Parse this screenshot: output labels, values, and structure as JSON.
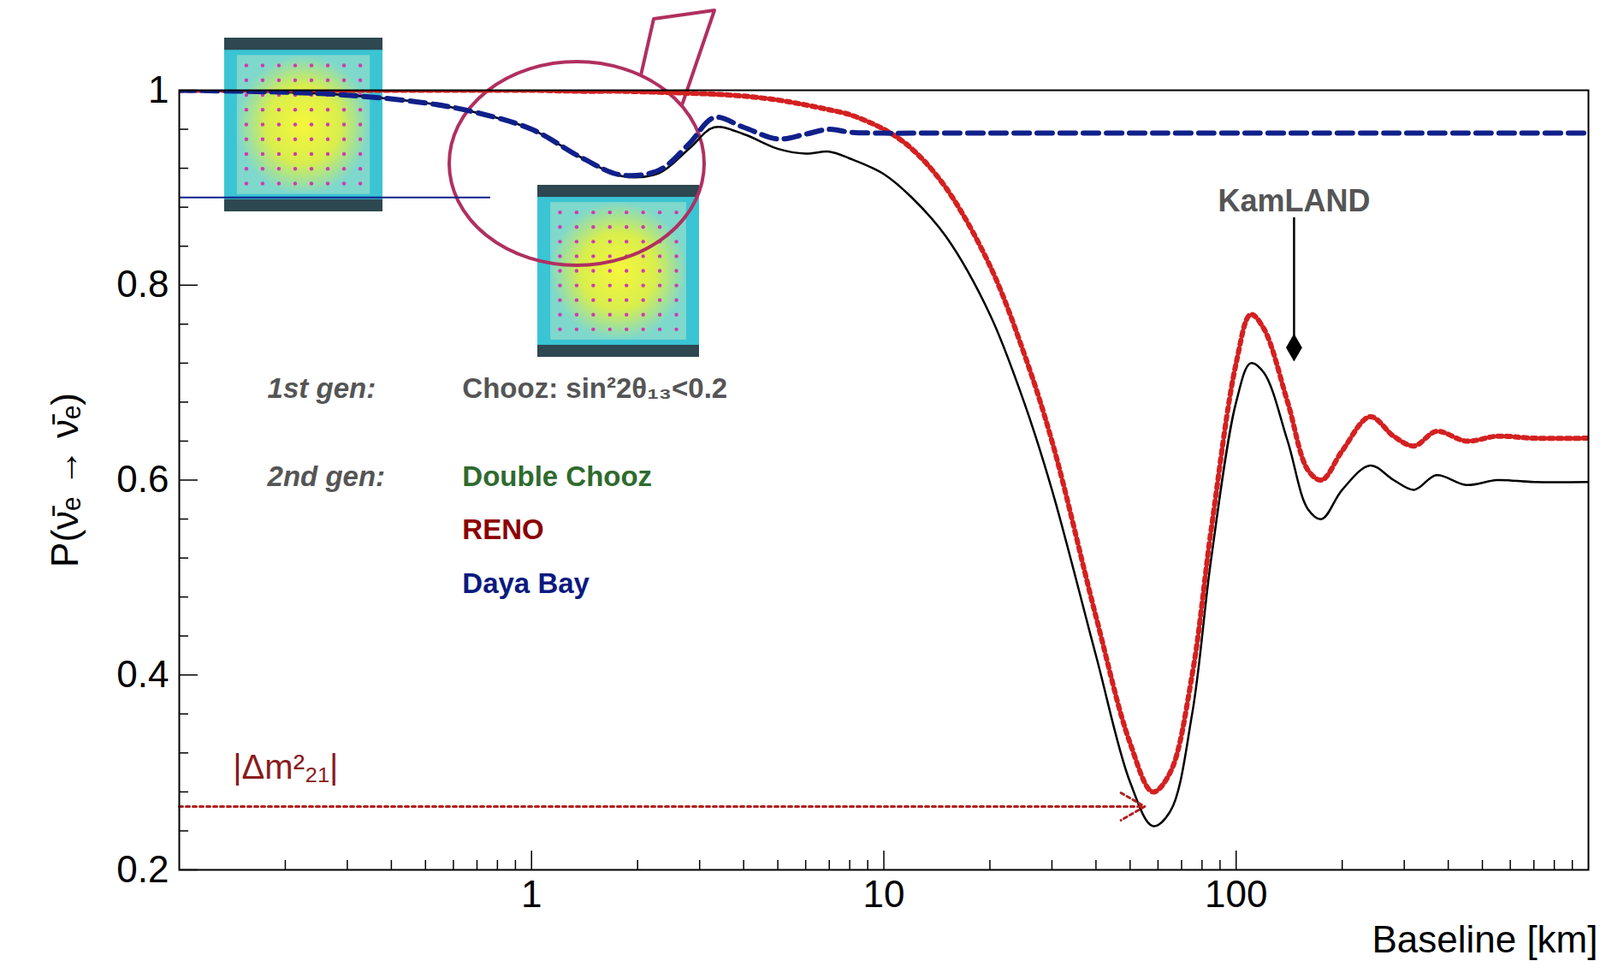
{
  "chart_data": {
    "type": "line",
    "xlabel": "Baseline [km]",
    "ylabel": "P(ν̄ₑ → ν̄ₑ)",
    "log": "x",
    "grid": false,
    "xlim": [
      0.1,
      1000
    ],
    "xticks": [
      1,
      10,
      100
    ],
    "ylim": [
      0.2,
      1
    ],
    "yticks": [
      0.2,
      0.4,
      0.6,
      0.8,
      1
    ],
    "x": [
      0.1,
      0.2,
      0.3,
      0.5,
      0.7,
      1,
      1.4,
      1.8,
      2.3,
      2.8,
      3.3,
      4,
      5,
      6,
      7,
      8,
      10,
      12,
      15,
      20,
      25,
      30,
      40,
      50,
      58,
      65,
      75,
      85,
      100,
      110,
      120,
      140,
      160,
      175,
      200,
      240,
      280,
      320,
      370,
      450,
      550,
      700,
      1000
    ],
    "series": [
      {
        "color": "#000000",
        "line_style": "solid",
        "values": [
          1.0,
          0.998,
          0.995,
          0.987,
          0.977,
          0.96,
          0.93,
          0.912,
          0.915,
          0.94,
          0.962,
          0.955,
          0.94,
          0.935,
          0.937,
          0.93,
          0.914,
          0.89,
          0.85,
          0.77,
          0.68,
          0.59,
          0.42,
          0.29,
          0.245,
          0.26,
          0.36,
          0.52,
          0.68,
          0.72,
          0.71,
          0.64,
          0.57,
          0.56,
          0.59,
          0.615,
          0.6,
          0.59,
          0.605,
          0.595,
          0.6,
          0.598,
          0.598
        ]
      },
      {
        "color": "#d42020",
        "line_style": "dotted",
        "values": [
          1,
          1,
          1,
          1,
          1,
          1,
          0.999,
          0.999,
          0.998,
          0.997,
          0.996,
          0.994,
          0.99,
          0.985,
          0.98,
          0.975,
          0.96,
          0.94,
          0.9,
          0.82,
          0.73,
          0.64,
          0.46,
          0.33,
          0.28,
          0.3,
          0.4,
          0.55,
          0.72,
          0.77,
          0.755,
          0.68,
          0.61,
          0.6,
          0.63,
          0.665,
          0.645,
          0.635,
          0.65,
          0.64,
          0.645,
          0.643,
          0.643
        ]
      },
      {
        "color": "#10208a",
        "line_style": "dashed",
        "values": [
          1.0,
          0.998,
          0.995,
          0.987,
          0.977,
          0.96,
          0.93,
          0.913,
          0.918,
          0.945,
          0.972,
          0.962,
          0.95,
          0.955,
          0.96,
          0.957,
          0.956,
          0.956,
          0.956,
          0.956,
          0.956,
          0.956,
          0.956,
          0.956,
          0.956,
          0.956,
          0.956,
          0.956,
          0.956,
          0.956,
          0.956,
          0.956,
          0.956,
          0.956,
          0.956,
          0.956,
          0.956,
          0.956,
          0.956,
          0.956,
          0.956,
          0.956,
          0.956
        ]
      },
      {
        "color": "#10208a",
        "line_style": "solid",
        "x": [
          0.1,
          0.76
        ],
        "values": [
          0.89,
          0.89
        ]
      }
    ],
    "annotations": [
      {
        "text": "1st gen:",
        "x": 0.178,
        "y": 0.694,
        "color": "#555555"
      },
      {
        "text": "Chooz: sin²2θ₁₃<0.2",
        "x": 0.636,
        "y": 0.694,
        "color": "#555555"
      },
      {
        "text": "2nd gen:",
        "x": 0.178,
        "y": 0.603,
        "color": "#555555"
      },
      {
        "text": "Double Chooz",
        "x": 0.636,
        "y": 0.603,
        "color": "#2e6b2e"
      },
      {
        "text": "RENO",
        "x": 0.636,
        "y": 0.549,
        "color": "#8b0000"
      },
      {
        "text": "Daya Bay",
        "x": 0.636,
        "y": 0.493,
        "color": "#0a1a80"
      },
      {
        "text": "|Δm²₂₁|",
        "x": 0.142,
        "y": 0.305,
        "color": "#8b1a1a"
      }
    ],
    "arrows": [
      {
        "x1": 0.1,
        "y1": 0.265,
        "x2": 55,
        "y2": 0.265,
        "color": "#b02020",
        "line_style": "dotted"
      }
    ],
    "points": [
      {
        "label": "KamLAND",
        "x": 146,
        "y": 0.736,
        "label_y": 0.886,
        "marker": "diamond",
        "color": "#000000"
      }
    ]
  }
}
